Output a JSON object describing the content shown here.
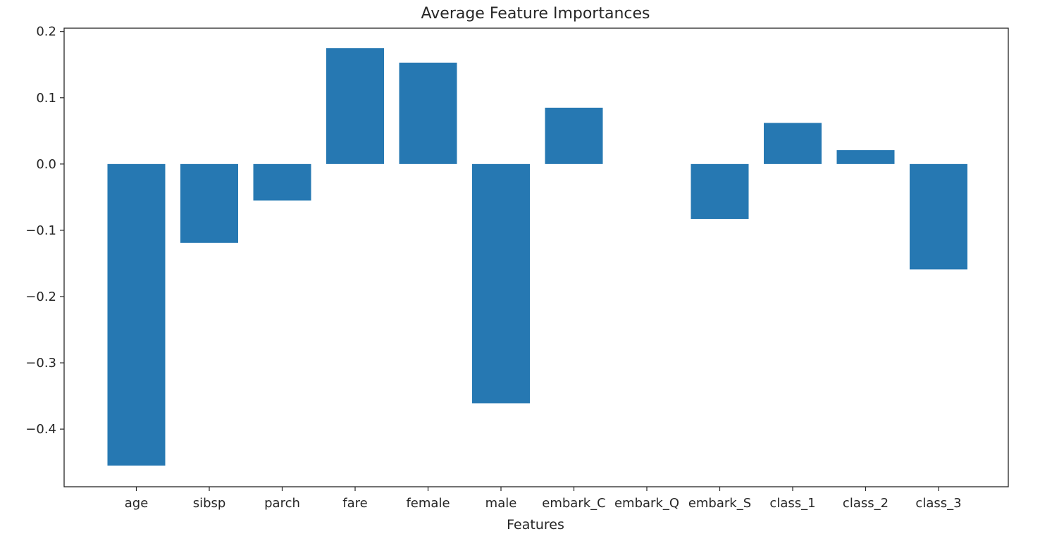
{
  "chart_data": {
    "type": "bar",
    "title": "Average Feature Importances",
    "xlabel": "Features",
    "ylabel": "",
    "categories": [
      "age",
      "sibsp",
      "parch",
      "fare",
      "female",
      "male",
      "embark_C",
      "embark_Q",
      "embark_S",
      "class_1",
      "class_2",
      "class_3"
    ],
    "values": [
      -0.455,
      -0.119,
      -0.055,
      0.175,
      0.153,
      -0.361,
      0.085,
      0.0,
      -0.083,
      0.062,
      0.021,
      -0.159
    ],
    "ylim": [
      -0.487,
      0.205
    ],
    "yticks": [
      0.2,
      0.1,
      0.0,
      -0.1,
      -0.2,
      -0.3,
      -0.4
    ],
    "ytick_labels": [
      "0.2",
      "0.1",
      "0.0",
      "−0.1",
      "−0.2",
      "−0.3",
      "−0.4"
    ],
    "grid": false,
    "bar_color": "#2678b2"
  }
}
